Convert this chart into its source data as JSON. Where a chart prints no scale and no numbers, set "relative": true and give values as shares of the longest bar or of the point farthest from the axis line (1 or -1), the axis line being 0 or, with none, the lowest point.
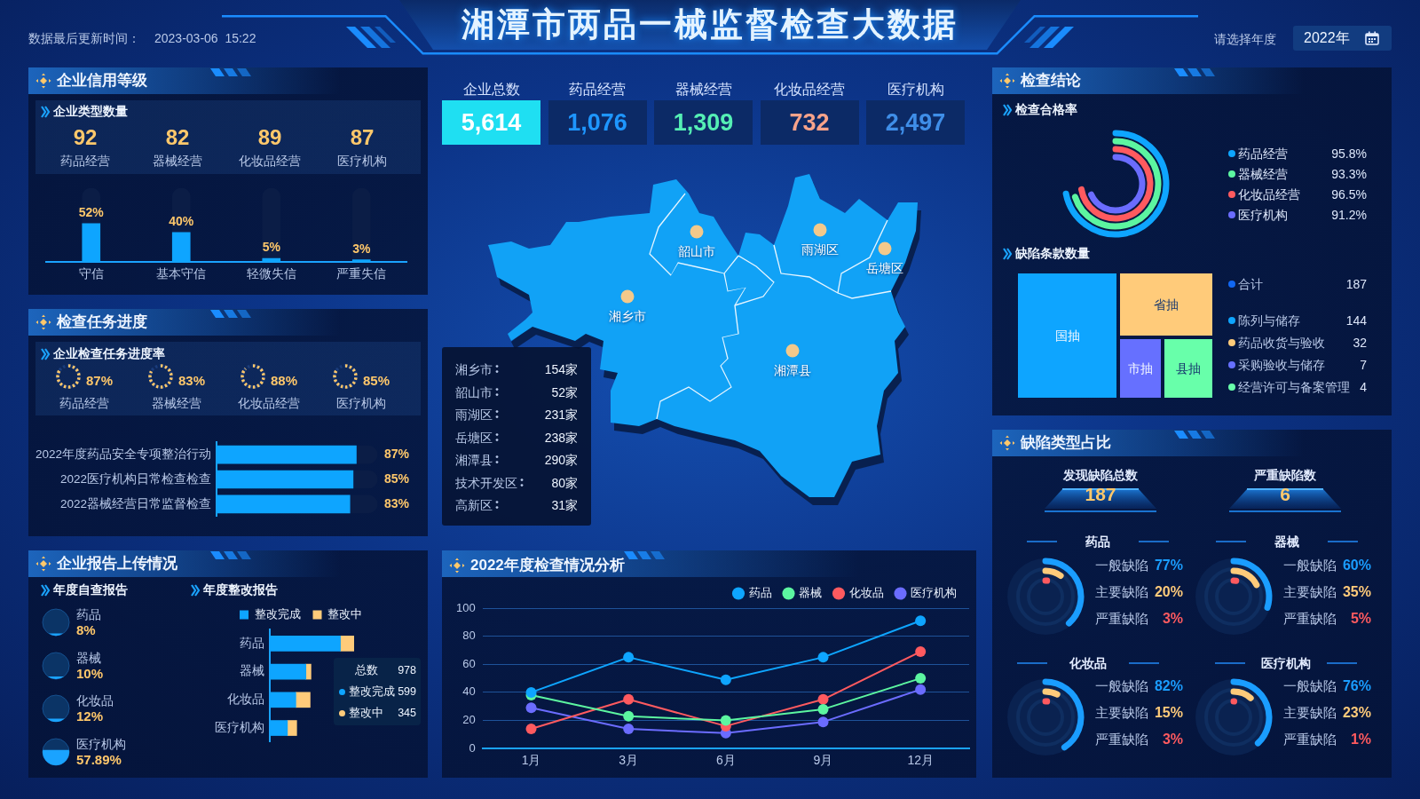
{
  "chart_data": [
    {
      "type": "other",
      "title": "湘潭市两品一械监督检查大数据",
      "annotations": [
        "数据最后更新时间：",
        "2023-03-06  15:22",
        "请选择年度",
        "2022年"
      ]
    },
    {
      "type": "other",
      "title": "企业信用等级",
      "subtitle": "企业类型数量",
      "categories": [
        "药品经营",
        "器械经营",
        "化妆品经营",
        "医疗机构"
      ],
      "values": [
        92,
        82,
        89,
        87
      ],
      "data_labels": true
    },
    {
      "type": "bar",
      "stacked": true,
      "categories": [
        "守信",
        "基本守信",
        "轻微失信",
        "严重失信"
      ],
      "series": [
        {
          "color": "#0ea5ff",
          "values": [
            52,
            40,
            5,
            3
          ],
          "value_labels": [
            "52%",
            "40%",
            "5%",
            "3%"
          ]
        },
        {
          "color": "#0b1d46",
          "values": [
            48,
            60,
            95,
            97
          ]
        }
      ],
      "ylim": [
        0,
        100
      ],
      "tick_labels": "x"
    },
    {
      "type": "other",
      "title": "检查任务进度",
      "subtitle": "企业检查任务进度率",
      "categories": [
        "药品经营",
        "器械经营",
        "化妆品经营",
        "医疗机构"
      ],
      "values": [
        87,
        83,
        88,
        85
      ],
      "value_labels": [
        "87%",
        "83%",
        "88%",
        "85%"
      ]
    },
    {
      "type": "bar",
      "stacked": true,
      "orientation": "horizontal",
      "categories": [
        "2022年度药品安全专项整治行动",
        "2022医疗机构日常检查检查",
        "2022器械经营日常监督检查"
      ],
      "series": [
        {
          "color": "#0ea5ff",
          "values": [
            87,
            85,
            83
          ],
          "value_labels": [
            "87%",
            "85%",
            "83%"
          ]
        },
        {
          "color": "#0b1d46",
          "values": [
            13,
            15,
            17
          ]
        }
      ],
      "xlim": [
        0,
        100
      ],
      "tick_labels": "y"
    },
    {
      "type": "other",
      "title": "企业报告上传情况",
      "subtitle": "年度自查报告",
      "categories": [
        "药品",
        "器械",
        "化妆品",
        "医疗机构"
      ],
      "values": [
        8,
        10,
        12,
        57.89
      ],
      "value_labels": [
        "8%",
        "10%",
        "12%",
        "57.89%"
      ]
    },
    {
      "type": "bar",
      "orientation": "horizontal",
      "stacked": true,
      "relative": true,
      "title": "年度整改报告",
      "categories": [
        "药品",
        "器械",
        "化妆品",
        "医疗机构"
      ],
      "series": [
        {
          "name": "整改完成",
          "color": "#0ea5ff",
          "values": [
            0.84,
            0.43,
            0.31,
            0.21
          ]
        },
        {
          "name": "整改中",
          "color": "#ffcb7a",
          "values": [
            0.16,
            0.06,
            0.17,
            0.11
          ]
        }
      ],
      "legend": "top",
      "tick_labels": "y",
      "annotations": [
        "总数",
        "978",
        "整改完成",
        "599",
        "整改中",
        "345"
      ]
    },
    {
      "type": "other",
      "categories": [
        "企业总数",
        "药品经营",
        "器械经营",
        "化妆品经营",
        "医疗机构"
      ],
      "value_labels": [
        "5,614",
        "1,076",
        "1,309",
        "732",
        "2,497"
      ],
      "colors": [
        "#ffffff",
        "#1e96ff",
        "#55efb4",
        "#f7a38a",
        "#3f8ee8"
      ]
    },
    {
      "type": "other",
      "annotations": [
        "韶山市",
        "雨湖区",
        "岳塘区",
        "湘乡市",
        "湘潭县"
      ],
      "categories": [
        "湘乡市",
        "韶山市",
        "雨湖区",
        "岳塘区",
        "湘潭县",
        "技术开发区",
        "高新区"
      ],
      "value_labels": [
        "154家",
        "52家",
        "231家",
        "238家",
        "290家",
        "80家",
        "31家"
      ]
    },
    {
      "type": "line",
      "title": "2022年度检查情况分析",
      "categories": [
        "1月",
        "3月",
        "6月",
        "9月",
        "12月"
      ],
      "series": [
        {
          "name": "药品",
          "color": "#0ea5ff",
          "values": [
            40,
            65,
            49,
            65,
            91
          ]
        },
        {
          "name": "器械",
          "color": "#5cf5a0",
          "values": [
            38,
            23,
            20,
            28,
            50
          ]
        },
        {
          "name": "化妆品",
          "color": "#ff5a5f",
          "values": [
            14,
            35,
            16,
            35,
            69
          ]
        },
        {
          "name": "医疗机构",
          "color": "#6b6cff",
          "values": [
            29,
            14,
            11,
            19,
            42
          ]
        }
      ],
      "ylim": [
        0,
        100
      ],
      "yticks": [
        0,
        20,
        40,
        60,
        80,
        100
      ],
      "grid": "y",
      "legend": "top right",
      "marker": "circle"
    },
    {
      "type": "other",
      "title": "检查结论",
      "subtitle": "检查合格率",
      "categories": [
        "药品经营",
        "器械经营",
        "化妆品经营",
        "医疗机构"
      ],
      "values": [
        95.8,
        93.3,
        96.5,
        91.2
      ],
      "value_labels": [
        "95.8%",
        "93.3%",
        "96.5%",
        "91.2%"
      ],
      "colors": [
        "#0ea5ff",
        "#5cf5a0",
        "#ff5a5f",
        "#6b6cff"
      ]
    },
    {
      "type": "other",
      "subtitle": "缺陷条款数量",
      "categories": [
        "国抽",
        "省抽",
        "市抽",
        "县抽"
      ],
      "colors": [
        "#0ea5ff",
        "#ffcb7a",
        "#6670ff",
        "#68ffaa"
      ]
    },
    {
      "type": "other",
      "categories": [
        "合计",
        "陈列与储存",
        "药品收货与验收",
        "采购验收与储存",
        "经营许可与备案管理"
      ],
      "values": [
        187,
        144,
        32,
        7,
        4
      ],
      "data_labels": true,
      "colors": [
        "#1167f2",
        "#0ea5ff",
        "#ffcb7a",
        "#6670ff",
        "#68ffaa"
      ]
    },
    {
      "type": "other",
      "title": "缺陷类型占比",
      "categories": [
        "发现缺陷总数",
        "严重缺陷数"
      ],
      "values": [
        187,
        6
      ],
      "data_labels": true
    },
    {
      "type": "other",
      "categories": [
        "一般缺陷",
        "主要缺陷",
        "严重缺陷"
      ],
      "colors": [
        "#1a9dff",
        "#ffcb7a",
        "#ff5a5f"
      ],
      "series": [
        {
          "name": "药品",
          "values": [
            77,
            20,
            3
          ],
          "value_labels": [
            "77%",
            "20%",
            "3%"
          ]
        },
        {
          "name": "器械",
          "values": [
            60,
            35,
            5
          ],
          "value_labels": [
            "60%",
            "35%",
            "5%"
          ]
        },
        {
          "name": "化妆品",
          "values": [
            82,
            15,
            3
          ],
          "value_labels": [
            "82%",
            "15%",
            "3%"
          ]
        },
        {
          "name": "医疗机构",
          "values": [
            76,
            23,
            1
          ],
          "value_labels": [
            "76%",
            "23%",
            "1%"
          ]
        }
      ]
    }
  ]
}
